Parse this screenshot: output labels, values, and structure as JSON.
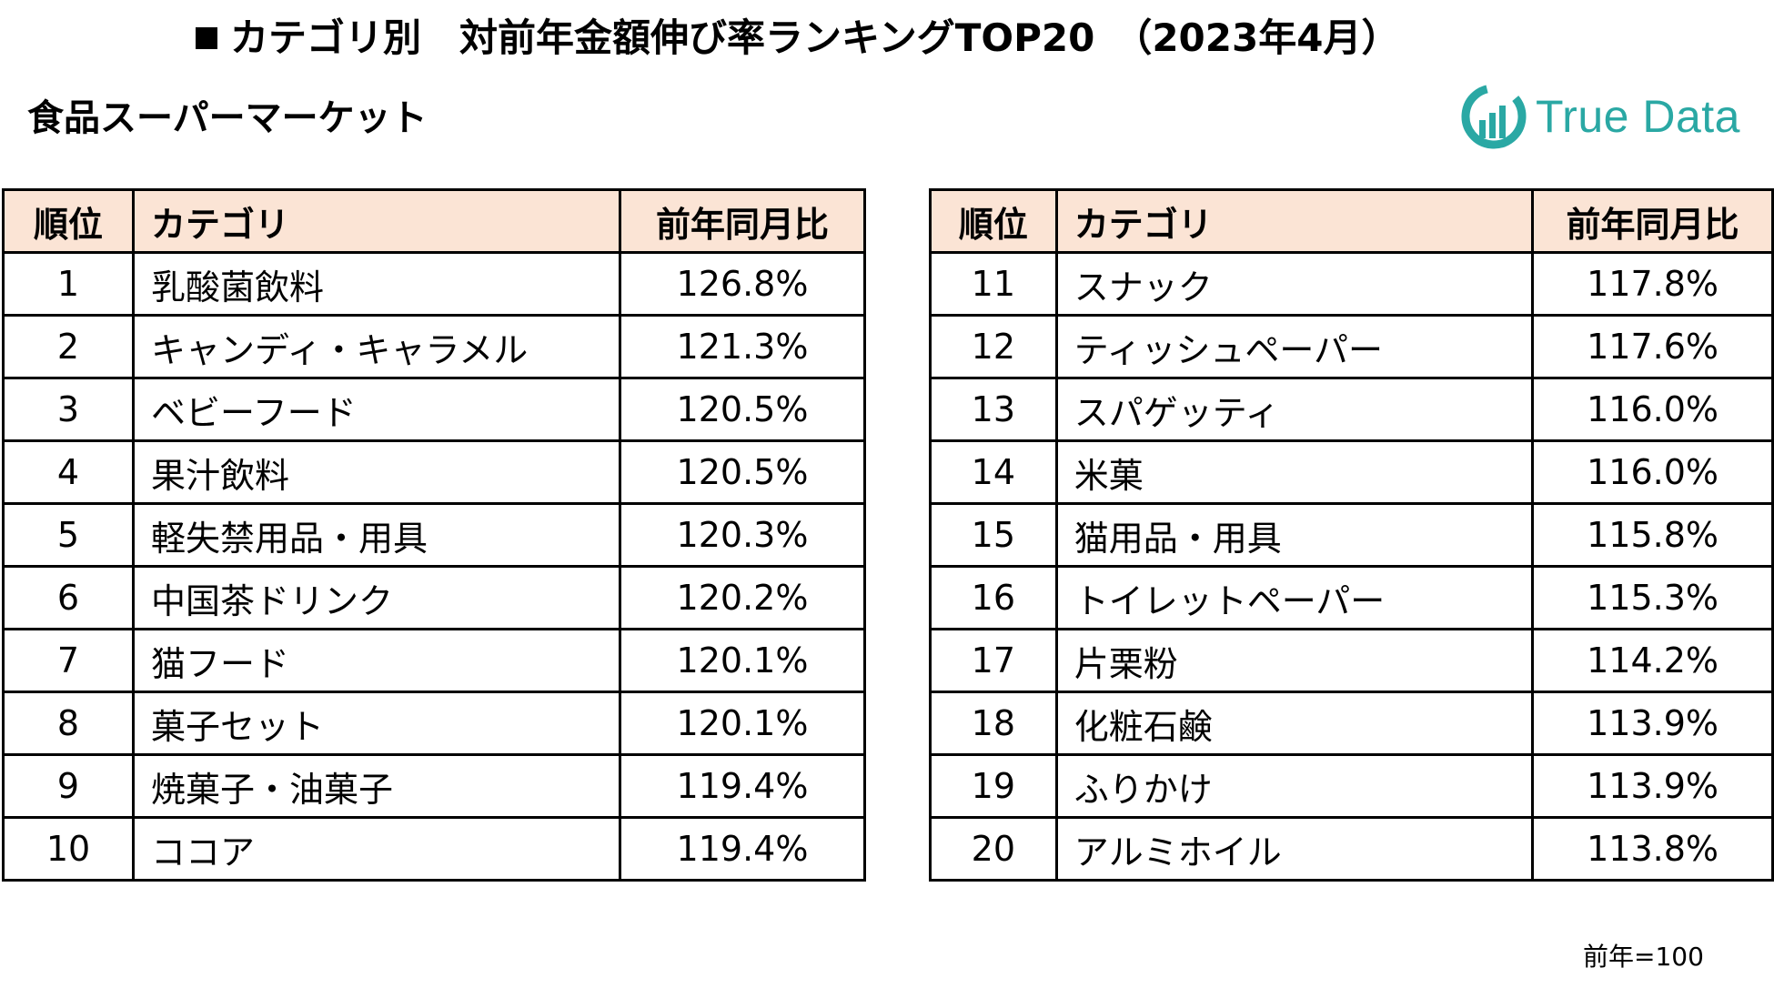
{
  "title": "カテゴリ別　対前年金額伸び率ランキングTOP20　（2023年4月）",
  "subtitle": "食品スーパーマーケット",
  "logo_text": "True Data",
  "brand_color": "#2aa8a4",
  "header_bg_color": "#fbe4d5",
  "table_headers": {
    "rank": "順位",
    "category": "カテゴリ",
    "ratio": "前年同月比"
  },
  "left_rows": [
    {
      "rank": "1",
      "category": "乳酸菌飲料",
      "ratio": "126.8%"
    },
    {
      "rank": "2",
      "category": "キャンディ・キャラメル",
      "ratio": "121.3%"
    },
    {
      "rank": "3",
      "category": "ベビーフード",
      "ratio": "120.5%"
    },
    {
      "rank": "4",
      "category": "果汁飲料",
      "ratio": "120.5%"
    },
    {
      "rank": "5",
      "category": "軽失禁用品・用具",
      "ratio": "120.3%"
    },
    {
      "rank": "6",
      "category": "中国茶ドリンク",
      "ratio": "120.2%"
    },
    {
      "rank": "7",
      "category": "猫フード",
      "ratio": "120.1%"
    },
    {
      "rank": "8",
      "category": "菓子セット",
      "ratio": "120.1%"
    },
    {
      "rank": "9",
      "category": "焼菓子・油菓子",
      "ratio": "119.4%"
    },
    {
      "rank": "10",
      "category": "ココア",
      "ratio": "119.4%"
    }
  ],
  "right_rows": [
    {
      "rank": "11",
      "category": "スナック",
      "ratio": "117.8%"
    },
    {
      "rank": "12",
      "category": "ティッシュペーパー",
      "ratio": "117.6%"
    },
    {
      "rank": "13",
      "category": "スパゲッティ",
      "ratio": "116.0%"
    },
    {
      "rank": "14",
      "category": "米菓",
      "ratio": "116.0%"
    },
    {
      "rank": "15",
      "category": "猫用品・用具",
      "ratio": "115.8%"
    },
    {
      "rank": "16",
      "category": "トイレットペーパー",
      "ratio": "115.3%"
    },
    {
      "rank": "17",
      "category": "片栗粉",
      "ratio": "114.2%"
    },
    {
      "rank": "18",
      "category": "化粧石鹸",
      "ratio": "113.9%"
    },
    {
      "rank": "19",
      "category": "ふりかけ",
      "ratio": "113.9%"
    },
    {
      "rank": "20",
      "category": "アルミホイル",
      "ratio": "113.8%"
    }
  ],
  "note": "前年=100"
}
